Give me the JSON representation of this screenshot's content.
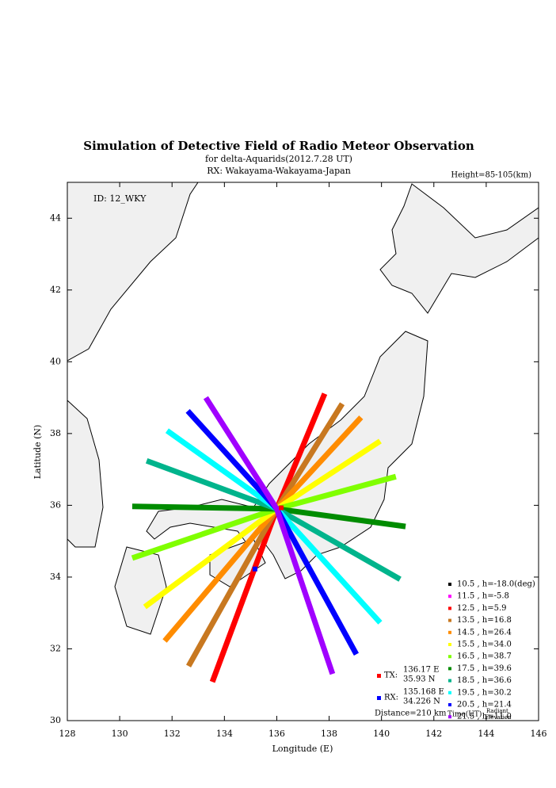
{
  "chart_data": {
    "type": "line",
    "title": "Simulation of Detective Field of Radio Meteor Observation",
    "subtitle": [
      "for delta-Aquarids(2012.7.28 UT)",
      "RX: Wakayama-Wakayama-Japan"
    ],
    "height_label": "Height=85-105(km)",
    "id_label": "ID: 12_WKY",
    "xlabel": "Longitude (E)",
    "ylabel": "Latitude (N)",
    "xlim": [
      128,
      146
    ],
    "ylim": [
      30,
      45
    ],
    "xticks": [
      128,
      130,
      132,
      134,
      136,
      138,
      140,
      142,
      144,
      146
    ],
    "yticks": [
      30,
      32,
      34,
      36,
      38,
      40,
      42,
      44
    ],
    "series": [
      {
        "name": "10.5 , h=-18.0(deg)",
        "color": "#000000",
        "x": [
          135.8,
          135.9
        ],
        "values": [
          35.7,
          35.8
        ]
      },
      {
        "name": "11.5 , h=-5.8",
        "color": "#ff00ff",
        "x": [
          135.8,
          135.9
        ],
        "values": [
          35.6,
          35.7
        ]
      },
      {
        "name": "12.5 , h=5.9",
        "color": "#ff0000",
        "x": [
          133.54,
          136.0,
          137.83
        ],
        "values": [
          31.08,
          35.9,
          39.11
        ]
      },
      {
        "name": "13.5 , h=16.8",
        "color": "#c87820",
        "x": [
          132.63,
          136.0,
          138.5
        ],
        "values": [
          31.52,
          35.9,
          38.83
        ]
      },
      {
        "name": "14.5 , h=26.4",
        "color": "#ff8c00",
        "x": [
          131.72,
          136.0,
          139.22
        ],
        "values": [
          32.22,
          35.9,
          38.45
        ]
      },
      {
        "name": "15.5 , h=34.0",
        "color": "#ffff00",
        "x": [
          130.96,
          136.0,
          139.95
        ],
        "values": [
          33.17,
          35.9,
          37.79
        ]
      },
      {
        "name": "16.5 , h=38.7",
        "color": "#80ff00",
        "x": [
          130.48,
          136.0,
          140.55
        ],
        "values": [
          34.53,
          35.9,
          36.8
        ]
      },
      {
        "name": "17.5 , h=39.6",
        "color": "#008c00",
        "x": [
          130.48,
          136.0,
          140.92
        ],
        "values": [
          35.97,
          35.9,
          35.41
        ]
      },
      {
        "name": "18.5 , h=36.6",
        "color": "#00b48c",
        "x": [
          131.03,
          136.0,
          140.71
        ],
        "values": [
          37.24,
          35.9,
          33.94
        ]
      },
      {
        "name": "19.5 , h=30.2",
        "color": "#00ffff",
        "x": [
          131.81,
          136.0,
          139.95
        ],
        "values": [
          38.08,
          35.9,
          32.73
        ]
      },
      {
        "name": "20.5 , h=21.4",
        "color": "#0000ff",
        "x": [
          132.6,
          136.0,
          139.04
        ],
        "values": [
          38.63,
          35.9,
          31.85
        ]
      },
      {
        "name": "21.5 , h=11.0",
        "color": "#a000ff",
        "x": [
          133.29,
          136.0,
          138.13
        ],
        "values": [
          39.0,
          35.9,
          31.3
        ]
      }
    ],
    "stations": [
      {
        "name": "TX:",
        "lon": 136.17,
        "lat": 35.93,
        "lon_label": "136.17 E",
        "lat_label": "35.93 N",
        "color": "#ff0000"
      },
      {
        "name": "RX:",
        "lon": 135.168,
        "lat": 34.226,
        "lon_label": "135.168 E",
        "lat_label": "34.226 N",
        "color": "#0000ff"
      }
    ],
    "distance_label": "Distance=210 km",
    "legend_title": "Time(UT)",
    "legend_note": [
      "Radiant",
      "Elevation"
    ]
  }
}
